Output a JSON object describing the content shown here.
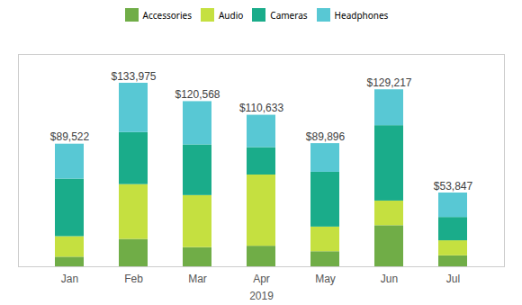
{
  "chart_data": {
    "type": "bar",
    "stacked": true,
    "categories": [
      "Jan",
      "Feb",
      "Mar",
      "Apr",
      "May",
      "Jun",
      "Jul"
    ],
    "series": [
      {
        "name": "Accessories",
        "color": "#70ad47",
        "values": [
          7000,
          20000,
          14000,
          15000,
          11000,
          30000,
          8000
        ]
      },
      {
        "name": "Audio",
        "color": "#c5e040",
        "values": [
          15000,
          40000,
          38000,
          52000,
          18000,
          18000,
          11000
        ]
      },
      {
        "name": "Cameras",
        "color": "#1aac8a",
        "values": [
          42000,
          38000,
          37000,
          20000,
          40000,
          55000,
          17000
        ]
      },
      {
        "name": "Headphones",
        "color": "#58c8d4",
        "values": [
          25522,
          35975,
          31568,
          23633,
          20896,
          26217,
          17847
        ]
      }
    ],
    "totals": [
      89522,
      133975,
      120568,
      110633,
      89896,
      129217,
      53847
    ],
    "total_labels": [
      "$89,522",
      "$133,975",
      "$120,568",
      "$110,633",
      "$89,896",
      "$129,217",
      "$53,847"
    ],
    "xlabel": "2019",
    "ylim": [
      0,
      155000
    ],
    "yticks": [],
    "tick_labels": "x",
    "legend": "top",
    "grid": false
  }
}
